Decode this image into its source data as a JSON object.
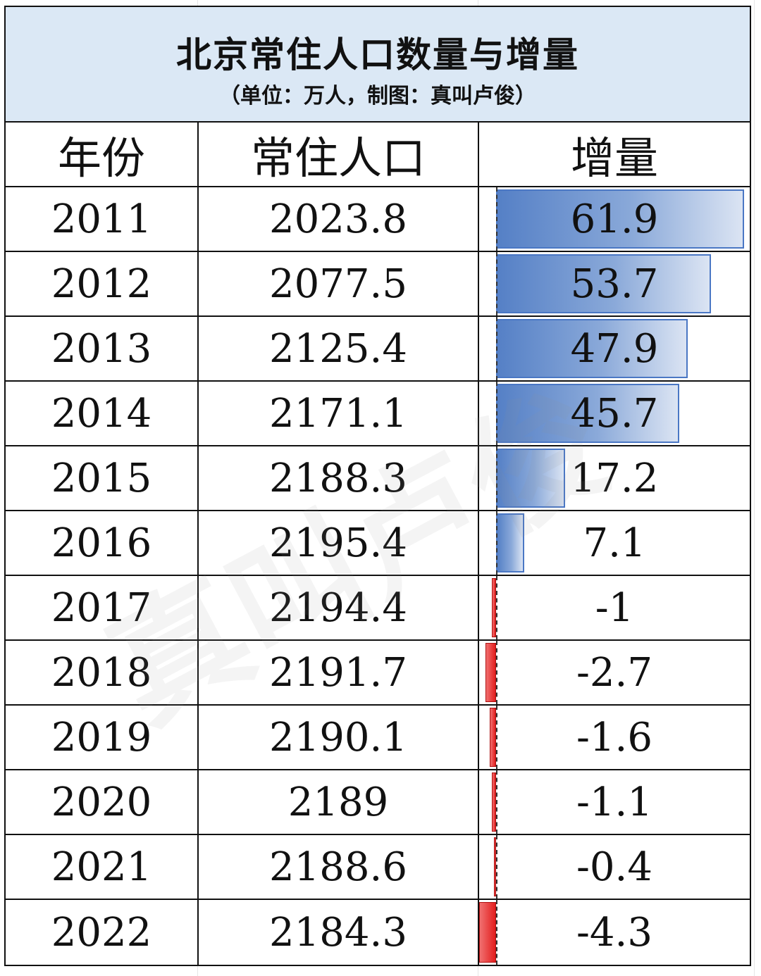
{
  "chart_data": {
    "type": "table",
    "title": "北京常住人口数量与增量",
    "subtitle": "（单位：万人，制图：真叫卢俊）",
    "columns": [
      "年份",
      "常住人口",
      "增量"
    ],
    "rows": [
      {
        "year": "2011",
        "population": "2023.8",
        "increase": "61.9"
      },
      {
        "year": "2012",
        "population": "2077.5",
        "increase": "53.7"
      },
      {
        "year": "2013",
        "population": "2125.4",
        "increase": "47.9"
      },
      {
        "year": "2014",
        "population": "2171.1",
        "increase": "45.7"
      },
      {
        "year": "2015",
        "population": "2188.3",
        "increase": "17.2"
      },
      {
        "year": "2016",
        "population": "2195.4",
        "increase": "7.1"
      },
      {
        "year": "2017",
        "population": "2194.4",
        "increase": "-1"
      },
      {
        "year": "2018",
        "population": "2191.7",
        "increase": "-2.7"
      },
      {
        "year": "2019",
        "population": "2190.1",
        "increase": "-1.6"
      },
      {
        "year": "2020",
        "population": "2189",
        "increase": "-1.1"
      },
      {
        "year": "2021",
        "population": "2188.6",
        "increase": "-0.4"
      },
      {
        "year": "2022",
        "population": "2184.3",
        "increase": "-4.3"
      }
    ],
    "colors": {
      "positive_bar": "#5580c6",
      "negative_bar": "#e31e1e",
      "title_background": "#dbe8f5"
    }
  },
  "watermark": "真叫卢俊"
}
